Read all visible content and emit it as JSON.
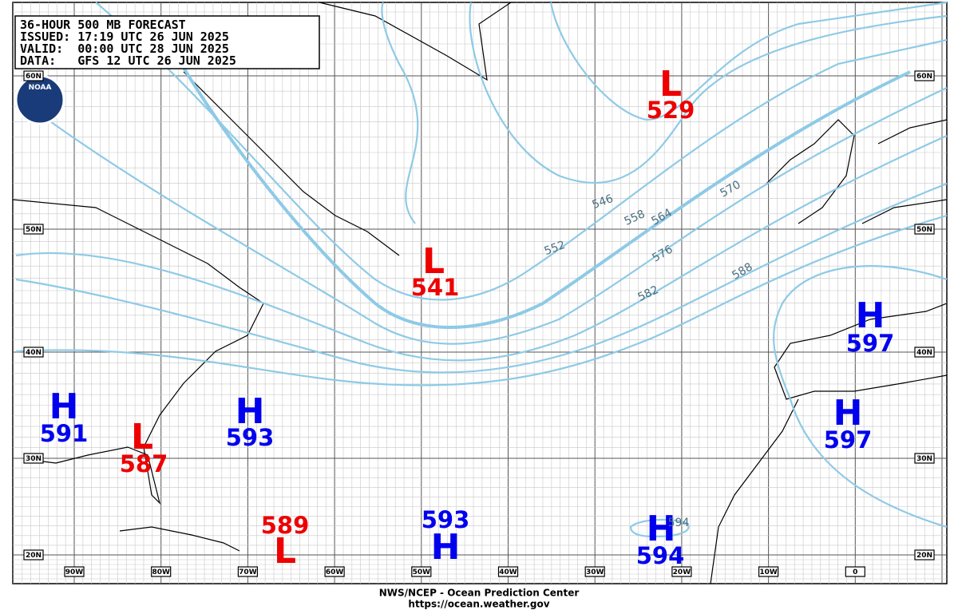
{
  "header": {
    "lines": [
      "36-HOUR 500 MB FORECAST",
      "ISSUED: 17:19 UTC 26 JUN 2025",
      "VALID:  00:00 UTC 28 JUN 2025",
      "DATA:   GFS 12 UTC 26 JUN 2025"
    ],
    "logo": "NOAA"
  },
  "centers": [
    {
      "type": "H",
      "value": 591
    },
    {
      "type": "L",
      "value": 587
    },
    {
      "type": "H",
      "value": 593
    },
    {
      "type": "L",
      "value": 541
    },
    {
      "type": "L",
      "value": 529
    },
    {
      "type": "H",
      "value": 597
    },
    {
      "type": "H",
      "value": 597
    },
    {
      "type": "L",
      "value": 589
    },
    {
      "type": "H",
      "value": 593
    },
    {
      "type": "H",
      "value": 594
    }
  ],
  "contour_labels": [
    546,
    552,
    558,
    564,
    570,
    576,
    582,
    588,
    594
  ],
  "latitudes": [
    "60N",
    "50N",
    "40N",
    "30N",
    "20N"
  ],
  "longitudes": [
    "90W",
    "80W",
    "70W",
    "60W",
    "50W",
    "40W",
    "30W",
    "20W",
    "10W",
    "0"
  ],
  "footer": {
    "line1": "NWS/NCEP - Ocean Prediction Center",
    "line2": "https://ocean.weather.gov"
  }
}
